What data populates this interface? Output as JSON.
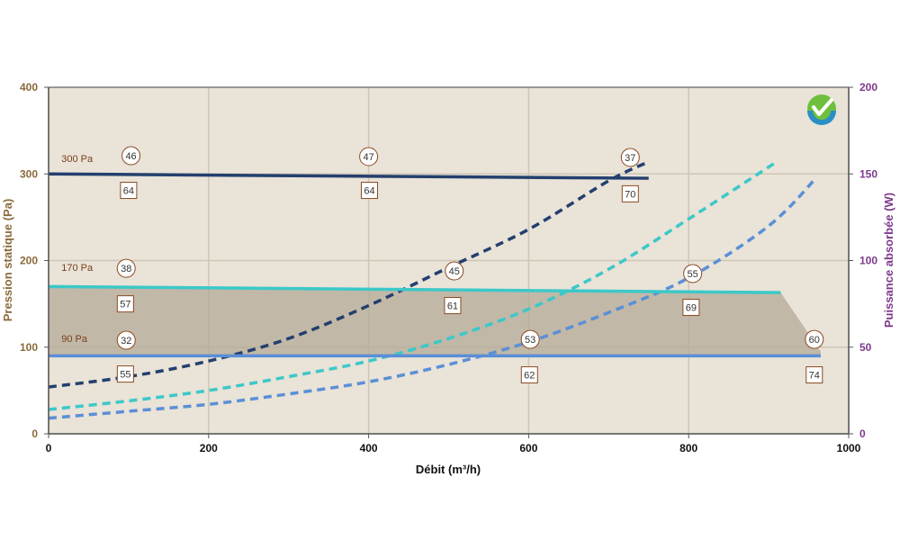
{
  "chart_data": {
    "type": "line",
    "xlabel": "Débit (m³/h)",
    "ylabel_left": "Pression statique (Pa)",
    "ylabel_right": "Puissance absorbée (W)",
    "xlim": [
      0,
      1000
    ],
    "ylim_left": [
      0,
      400
    ],
    "ylim_right": [
      0,
      200
    ],
    "x_ticks": [
      "0",
      "200",
      "400",
      "600",
      "800",
      "1000"
    ],
    "y_left_ticks": [
      "0",
      "100",
      "200",
      "300",
      "400"
    ],
    "y_right_ticks": [
      "0",
      "50",
      "100",
      "150",
      "200"
    ],
    "grid": true,
    "colors": {
      "plot_bg": "#e9e3d8",
      "grid": "#cfc6b6",
      "axis_left": "#8b6a3a",
      "axis_right": "#7d3a8c",
      "shade": "#b3aa98",
      "label_text": "#7a3f1a",
      "label_border": "#8b4a22"
    },
    "pressure_curves": [
      {
        "name": "300 Pa",
        "color": "#233f6e",
        "x": [
          0,
          750
        ],
        "y": [
          300,
          295
        ]
      },
      {
        "name": "170 Pa",
        "color": "#3cc8c8",
        "x": [
          0,
          915
        ],
        "y": [
          170,
          163
        ]
      },
      {
        "name": "90 Pa",
        "color": "#5b8fd6",
        "x": [
          0,
          965
        ],
        "y": [
          90,
          90
        ]
      }
    ],
    "shaded_region": {
      "x": [
        0,
        915,
        965,
        965,
        0
      ],
      "y": [
        170,
        163,
        95,
        90,
        90
      ]
    },
    "power_curves": [
      {
        "color": "#233f6e",
        "axis": "right",
        "x": [
          0,
          100,
          200,
          300,
          400,
          500,
          600,
          700,
          750
        ],
        "y": [
          27,
          33,
          42,
          55,
          74,
          96,
          118,
          146,
          157
        ]
      },
      {
        "color": "#3cc8c8",
        "axis": "right",
        "x": [
          0,
          100,
          200,
          300,
          400,
          500,
          600,
          700,
          800,
          910
        ],
        "y": [
          14,
          19,
          25,
          33,
          42,
          55,
          72,
          95,
          124,
          157
        ]
      },
      {
        "color": "#5b8fd6",
        "axis": "right",
        "x": [
          0,
          100,
          200,
          300,
          400,
          500,
          600,
          700,
          800,
          900,
          960
        ],
        "y": [
          9,
          13,
          17,
          23,
          30,
          40,
          53,
          70,
          90,
          120,
          148
        ]
      }
    ],
    "circle_labels": [
      {
        "text": "46",
        "x": 103,
        "y": 321
      },
      {
        "text": "47",
        "x": 400,
        "y": 320
      },
      {
        "text": "37",
        "x": 727,
        "y": 319
      },
      {
        "text": "38",
        "x": 97,
        "y": 191
      },
      {
        "text": "45",
        "x": 507,
        "y": 188
      },
      {
        "text": "55",
        "x": 805,
        "y": 185
      },
      {
        "text": "32",
        "x": 97,
        "y": 108
      },
      {
        "text": "53",
        "x": 602,
        "y": 109
      },
      {
        "text": "60",
        "x": 957,
        "y": 109
      }
    ],
    "square_labels": [
      {
        "text": "64",
        "x": 100,
        "y": 281
      },
      {
        "text": "64",
        "x": 401,
        "y": 281
      },
      {
        "text": "70",
        "x": 727,
        "y": 277
      },
      {
        "text": "57",
        "x": 96,
        "y": 150
      },
      {
        "text": "61",
        "x": 505,
        "y": 148
      },
      {
        "text": "69",
        "x": 803,
        "y": 146
      },
      {
        "text": "55",
        "x": 96,
        "y": 69
      },
      {
        "text": "62",
        "x": 601,
        "y": 68
      },
      {
        "text": "74",
        "x": 957,
        "y": 68
      }
    ],
    "curve_labels": [
      {
        "text": "300 Pa",
        "x": 16,
        "y": 314
      },
      {
        "text": "170 Pa",
        "x": 16,
        "y": 188
      },
      {
        "text": "90 Pa",
        "x": 16,
        "y": 106
      }
    ]
  }
}
